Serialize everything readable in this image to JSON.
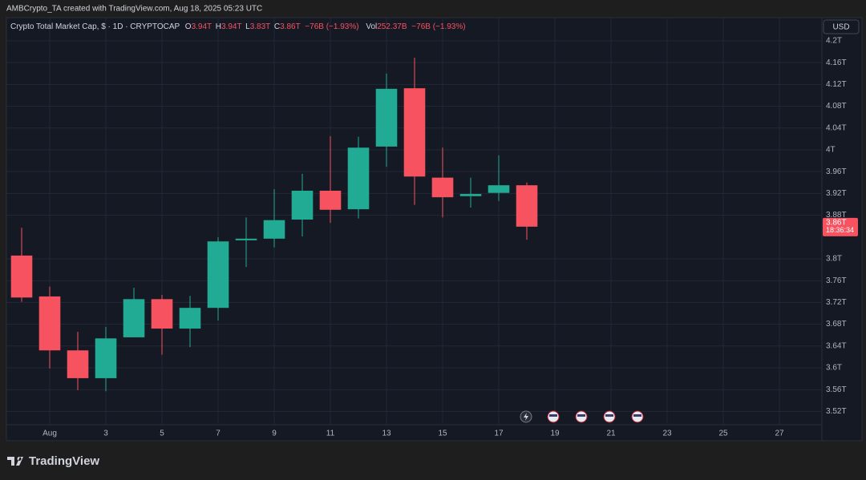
{
  "header": {
    "credit": "AMBCrypto_TA created with TradingView.com, Aug 18, 2025 05:23 UTC",
    "brand": "TradingView"
  },
  "chart_data": {
    "type": "candlestick",
    "title": "Crypto Total Market Cap, $ · 1D · CRYPTOCAP",
    "legend_items": [
      {
        "key": "O",
        "value": "3.94T"
      },
      {
        "key": "H",
        "value": "3.94T"
      },
      {
        "key": "L",
        "value": "3.83T"
      },
      {
        "key": "C",
        "value": "3.86T"
      }
    ],
    "change": "−76B (−1.93%)",
    "volume": {
      "key": "Vol",
      "value": "252.37B",
      "change": "−76B (−1.93%)"
    },
    "currency": "USD",
    "price_label": "3.86T",
    "countdown": "18:36:34",
    "up_color": "#22ab94",
    "down_color": "#f7525f",
    "x": [
      0,
      1,
      2,
      3,
      4,
      5,
      6,
      7,
      8,
      9,
      10,
      11,
      12,
      13,
      14,
      15,
      16,
      17,
      18
    ],
    "open": [
      3.806,
      3.731,
      3.632,
      3.581,
      3.656,
      3.726,
      3.672,
      3.71,
      3.834,
      3.837,
      3.872,
      3.925,
      3.891,
      4.006,
      4.113,
      3.949,
      3.915,
      3.921,
      3.935
    ],
    "high": [
      3.857,
      3.749,
      3.666,
      3.675,
      3.747,
      3.734,
      3.732,
      3.84,
      3.876,
      3.928,
      3.956,
      4.025,
      4.024,
      4.14,
      4.169,
      4.004,
      3.949,
      3.99,
      3.94
    ],
    "low": [
      3.721,
      3.599,
      3.559,
      3.557,
      3.656,
      3.624,
      3.638,
      3.687,
      3.785,
      3.821,
      3.841,
      3.866,
      3.874,
      3.969,
      3.899,
      3.876,
      3.894,
      3.906,
      3.835
    ],
    "close": [
      3.729,
      3.632,
      3.581,
      3.654,
      3.726,
      3.672,
      3.71,
      3.832,
      3.837,
      3.871,
      3.925,
      3.89,
      4.004,
      4.112,
      3.951,
      3.913,
      3.919,
      3.935,
      3.859
    ],
    "xlim": [
      -0.543,
      28.514
    ],
    "xticks": [
      {
        "value": 1,
        "label": "Aug"
      },
      3,
      5,
      7,
      9,
      11,
      13,
      15,
      17,
      19,
      21,
      23,
      25,
      27
    ],
    "ylim": [
      3.4956,
      4.2426
    ],
    "yticks": [
      {
        "value": 3.52,
        "label": "3.52T"
      },
      {
        "value": 3.56,
        "label": "3.56T"
      },
      {
        "value": 3.6,
        "label": "3.6T"
      },
      {
        "value": 3.64,
        "label": "3.64T"
      },
      {
        "value": 3.68,
        "label": "3.68T"
      },
      {
        "value": 3.72,
        "label": "3.72T"
      },
      {
        "value": 3.76,
        "label": "3.76T"
      },
      {
        "value": 3.8,
        "label": "3.8T"
      },
      {
        "value": 3.88,
        "label": "3.88T"
      },
      {
        "value": 3.92,
        "label": "3.92T"
      },
      {
        "value": 3.96,
        "label": "3.96T"
      },
      {
        "value": 4,
        "label": "4T"
      },
      {
        "value": 4.04,
        "label": "4.04T"
      },
      {
        "value": 4.08,
        "label": "4.08T"
      },
      {
        "value": 4.12,
        "label": "4.12T"
      },
      {
        "value": 4.16,
        "label": "4.16T"
      },
      {
        "value": 4.2,
        "label": "4.2T"
      }
    ],
    "grid": true
  }
}
